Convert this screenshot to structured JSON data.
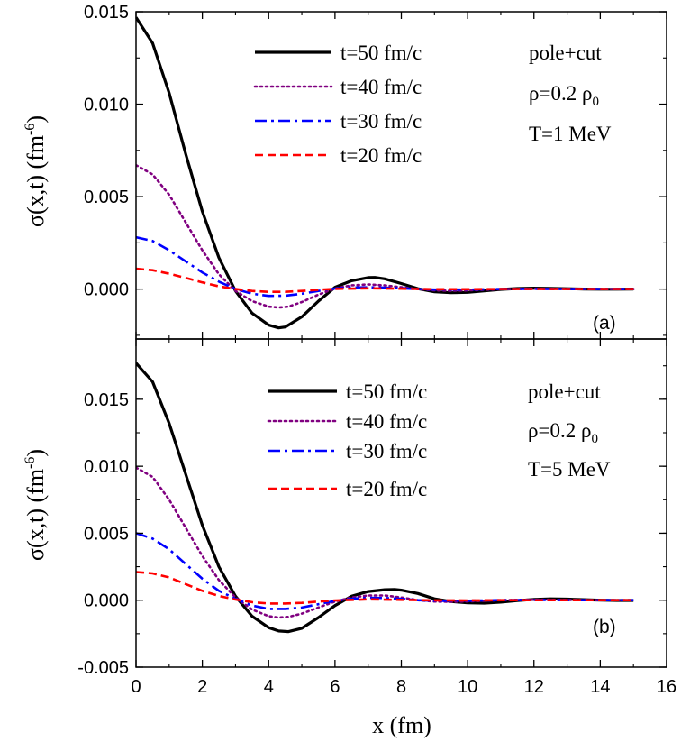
{
  "chart_data": [
    {
      "type": "line",
      "panel_label": "(a)",
      "xlabel": "x (fm)",
      "ylabel": {
        "main": "σ(x,t) (fm",
        "sup": "-6",
        "close": ")"
      },
      "xlim": [
        0,
        16
      ],
      "ylim": [
        -0.0027,
        0.015
      ],
      "xticks": [
        0,
        2,
        4,
        6,
        8,
        10,
        12,
        14,
        16
      ],
      "yticks": [
        0.0,
        0.005,
        0.01,
        0.015
      ],
      "ytick_labels": [
        "0.000",
        "0.005",
        "0.010",
        "0.015"
      ],
      "annotations": [
        {
          "text": "pole+cut"
        },
        {
          "text": "ρ=0.2 ρ",
          "sub": "0"
        },
        {
          "text": "T=1 MeV"
        }
      ],
      "series": [
        {
          "name": "t=50 fm/c",
          "color": "#000000",
          "style": "solid",
          "x": [
            0,
            0.5,
            1,
            1.5,
            2,
            2.5,
            3,
            3.5,
            4,
            4.3,
            4.5,
            5,
            5.5,
            6,
            6.5,
            7,
            7.2,
            7.5,
            8,
            8.5,
            9,
            9.5,
            10,
            10.5,
            11,
            11.5,
            12,
            12.5,
            13,
            13.5,
            14,
            14.5,
            15
          ],
          "y": [
            0.0147,
            0.0133,
            0.0106,
            0.0073,
            0.0042,
            0.0017,
            -0.0001,
            -0.0013,
            -0.00195,
            -0.0021,
            -0.00205,
            -0.0015,
            -0.00065,
            0.0001,
            0.00045,
            0.00062,
            0.00063,
            0.00055,
            0.0003,
            2e-05,
            -0.00015,
            -0.0002,
            -0.00018,
            -0.0001,
            -2e-05,
            3e-05,
            5e-05,
            4e-05,
            2e-05,
            0.0,
            -1e-05,
            -1e-05,
            0.0
          ]
        },
        {
          "name": "t=40 fm/c",
          "color": "#800080",
          "style": "dotted",
          "x": [
            0,
            0.5,
            1,
            1.5,
            2,
            2.5,
            3,
            3.5,
            4,
            4.3,
            4.6,
            5,
            5.5,
            6,
            6.5,
            7,
            7.5,
            8,
            8.5,
            9,
            9.5,
            10,
            11,
            12,
            13,
            14,
            15
          ],
          "y": [
            0.0067,
            0.0062,
            0.0051,
            0.0036,
            0.0021,
            0.0008,
            -0.0001,
            -0.00065,
            -0.00095,
            -0.001,
            -0.00095,
            -0.0007,
            -0.0003,
            3e-05,
            0.0002,
            0.00025,
            0.0002,
            0.0001,
            0.0,
            -7e-05,
            -9e-05,
            -7e-05,
            -1e-05,
            2e-05,
            1e-05,
            0.0,
            0.0
          ]
        },
        {
          "name": "t=30 fm/c",
          "color": "#0000ff",
          "style": "dashdot",
          "x": [
            0,
            0.5,
            1,
            1.5,
            2,
            2.5,
            3,
            3.5,
            4,
            4.5,
            5,
            5.5,
            6,
            6.5,
            7,
            7.5,
            8,
            8.5,
            9,
            10,
            11,
            12,
            13,
            14,
            15
          ],
          "y": [
            0.0028,
            0.0026,
            0.0021,
            0.0015,
            0.0009,
            0.0004,
            0.0,
            -0.00025,
            -0.00037,
            -0.00036,
            -0.00025,
            -0.0001,
            3e-05,
            9e-05,
            0.0001,
            8e-05,
            4e-05,
            0.0,
            -3e-05,
            -3e-05,
            0.0,
            1e-05,
            0.0,
            0.0,
            0.0
          ]
        },
        {
          "name": "t=20 fm/c",
          "color": "#ff0000",
          "style": "dashed",
          "x": [
            0,
            0.5,
            1,
            1.5,
            2,
            2.5,
            3,
            3.5,
            4,
            4.5,
            5,
            5.5,
            6,
            7,
            8,
            9,
            10,
            11,
            12,
            13,
            14,
            15
          ],
          "y": [
            0.0011,
            0.00102,
            0.00083,
            0.0006,
            0.00036,
            0.00015,
            0.0,
            -0.0001,
            -0.00015,
            -0.00015,
            -0.0001,
            -4e-05,
            1e-05,
            4e-05,
            2e-05,
            -1e-05,
            -1e-05,
            0.0,
            0.0,
            0.0,
            0.0,
            0.0
          ]
        }
      ]
    },
    {
      "type": "line",
      "panel_label": "(b)",
      "xlabel": "x (fm)",
      "ylabel": {
        "main": "σ(x,t) (fm",
        "sup": "-6",
        "close": ")"
      },
      "xlim": [
        0,
        16
      ],
      "ylim": [
        -0.005,
        0.0195
      ],
      "xticks": [
        0,
        2,
        4,
        6,
        8,
        10,
        12,
        14,
        16
      ],
      "xtick_labels": [
        "0",
        "2",
        "4",
        "6",
        "8",
        "10",
        "12",
        "14",
        "16"
      ],
      "yticks": [
        -0.005,
        0.0,
        0.005,
        0.01,
        0.015
      ],
      "ytick_labels": [
        "-0.005",
        "0.000",
        "0.005",
        "0.010",
        "0.015"
      ],
      "annotations": [
        {
          "text": "pole+cut"
        },
        {
          "text": "ρ=0.2 ρ",
          "sub": "0"
        },
        {
          "text": "T=5 MeV"
        }
      ],
      "series": [
        {
          "name": "t=50 fm/c",
          "color": "#000000",
          "style": "solid",
          "x": [
            0,
            0.5,
            1,
            1.5,
            2,
            2.5,
            3,
            3.5,
            4,
            4.3,
            4.6,
            5,
            5.5,
            6,
            6.5,
            7,
            7.5,
            7.8,
            8,
            8.5,
            9,
            9.5,
            10,
            10.5,
            11,
            11.5,
            12,
            12.5,
            13,
            13.5,
            14,
            14.5,
            15
          ],
          "y": [
            0.0177,
            0.0163,
            0.0132,
            0.0094,
            0.0056,
            0.0025,
            0.0003,
            -0.0012,
            -0.00205,
            -0.0023,
            -0.00235,
            -0.0021,
            -0.0013,
            -0.0004,
            0.0003,
            0.00065,
            0.00078,
            0.0008,
            0.00075,
            0.0005,
            0.0001,
            -0.0001,
            -0.0002,
            -0.00022,
            -0.00015,
            -3e-05,
            6e-05,
            0.0001,
            8e-05,
            4e-05,
            0.0,
            -2e-05,
            -2e-05
          ]
        },
        {
          "name": "t=40 fm/c",
          "color": "#800080",
          "style": "dotted",
          "x": [
            0,
            0.5,
            1,
            1.5,
            2,
            2.5,
            3,
            3.5,
            4,
            4.3,
            4.6,
            5,
            5.5,
            6,
            6.5,
            7,
            7.5,
            8,
            8.5,
            9,
            9.5,
            10,
            11,
            12,
            13,
            14,
            15
          ],
          "y": [
            0.0099,
            0.0092,
            0.0075,
            0.0054,
            0.0033,
            0.0015,
            0.0002,
            -0.0007,
            -0.0012,
            -0.0013,
            -0.00125,
            -0.001,
            -0.00055,
            -0.0001,
            0.0002,
            0.00035,
            0.00035,
            0.0002,
            0.0,
            -0.0001,
            -0.00012,
            -9e-05,
            0.0,
            4e-05,
            2e-05,
            0.0,
            0.0
          ]
        },
        {
          "name": "t=30 fm/c",
          "color": "#0000ff",
          "style": "dashdot",
          "x": [
            0,
            0.5,
            1,
            1.5,
            2,
            2.5,
            3,
            3.5,
            4,
            4.5,
            5,
            5.5,
            6,
            6.5,
            7,
            7.5,
            8,
            8.5,
            9,
            10,
            11,
            12,
            13,
            14,
            15
          ],
          "y": [
            0.005,
            0.0046,
            0.0038,
            0.0027,
            0.0016,
            0.0007,
            0.0001,
            -0.0004,
            -0.00065,
            -0.00065,
            -0.00055,
            -0.0003,
            -5e-05,
            0.0001,
            0.00018,
            0.00016,
            0.0001,
            0.0,
            -5e-05,
            -4e-05,
            0.0,
            2e-05,
            0.0,
            0.0,
            0.0
          ]
        },
        {
          "name": "t=20 fm/c",
          "color": "#ff0000",
          "style": "dashed",
          "x": [
            0,
            0.5,
            1,
            1.5,
            2,
            2.5,
            3,
            3.5,
            4,
            4.5,
            5,
            5.5,
            6,
            7,
            8,
            9,
            10,
            11,
            12,
            13,
            14,
            15
          ],
          "y": [
            0.0021,
            0.002,
            0.0017,
            0.0012,
            0.0007,
            0.00032,
            5e-05,
            -0.00015,
            -0.00025,
            -0.00025,
            -0.0002,
            -0.0001,
            -2e-05,
            6e-05,
            3e-05,
            -1e-05,
            -2e-05,
            0.0,
            0.0,
            0.0,
            0.0,
            0.0
          ]
        }
      ]
    }
  ]
}
